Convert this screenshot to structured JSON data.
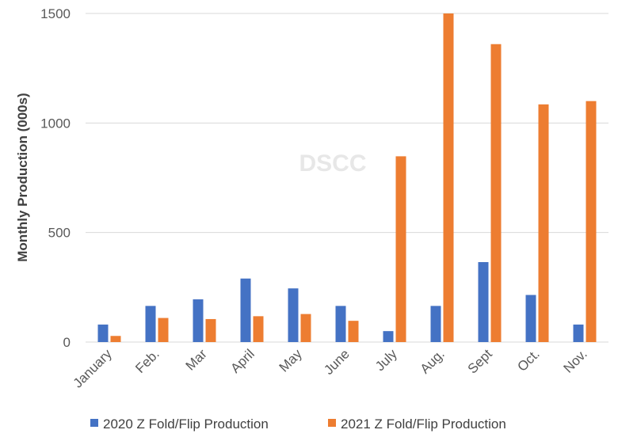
{
  "chart_data": {
    "type": "bar",
    "title": "",
    "xlabel": "",
    "ylabel": "Monthly Production (000s)",
    "ylim": [
      0,
      1500
    ],
    "yticks": [
      0,
      500,
      1000,
      1500
    ],
    "grid": true,
    "legend_position": "bottom",
    "watermark": "DSCC",
    "categories": [
      "January",
      "Feb.",
      "Mar",
      "April",
      "May",
      "June",
      "July",
      "Aug.",
      "Sept",
      "Oct.",
      "Nov."
    ],
    "series": [
      {
        "name": "2020 Z Fold/Flip Production",
        "color": "#4472C4",
        "values": [
          80,
          165,
          195,
          290,
          245,
          165,
          50,
          165,
          365,
          215,
          80
        ]
      },
      {
        "name": "2021 Z Fold/Flip Production",
        "color": "#ED7D31",
        "values": [
          28,
          110,
          105,
          118,
          128,
          97,
          848,
          1500,
          1360,
          1085,
          1100
        ]
      }
    ]
  }
}
